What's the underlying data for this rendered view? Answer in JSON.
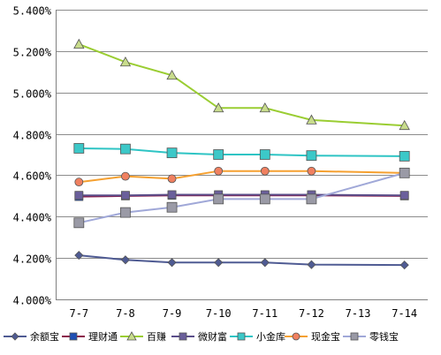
{
  "chart_data": {
    "type": "line",
    "categories": [
      "7-7",
      "7-8",
      "7-9",
      "7-10",
      "7-11",
      "7-12",
      "7-13",
      "7-14"
    ],
    "ylim": [
      4.0,
      5.4
    ],
    "yticks": [
      4.0,
      4.2,
      4.4,
      4.6,
      4.8,
      5.0,
      5.2,
      5.4
    ],
    "ytick_labels": [
      "4.000%",
      "4.200%",
      "4.400%",
      "4.600%",
      "4.800%",
      "5.000%",
      "5.200%",
      "5.400%"
    ],
    "grid": "horizontal",
    "legend_position": "bottom",
    "series": [
      {
        "name": "余额宝",
        "color": "#4f5b93",
        "marker": "diamond",
        "values": [
          4.213,
          4.191,
          4.178,
          4.178,
          4.178,
          4.168,
          null,
          4.166
        ]
      },
      {
        "name": "理财通",
        "color": "#8b1a4a",
        "marker_color": "#1f4fb4",
        "marker": "square",
        "values": [
          4.497,
          4.5,
          4.503,
          4.503,
          4.503,
          4.503,
          null,
          4.5
        ]
      },
      {
        "name": "百赚",
        "color": "#9acd32",
        "marker_color": "#c8dc8c",
        "marker": "triangle",
        "values": [
          5.233,
          5.147,
          5.083,
          4.925,
          4.925,
          4.867,
          null,
          4.84
        ]
      },
      {
        "name": "微财富",
        "color": "#5b4e8a",
        "marker_color": "#6a5f9b",
        "marker": "square",
        "values": [
          4.503,
          4.503,
          4.506,
          4.506,
          4.506,
          4.506,
          null,
          4.503
        ]
      },
      {
        "name": "小金库",
        "color": "#2ec4c4",
        "marker_color": "#3cc8c8",
        "marker": "square",
        "values": [
          4.73,
          4.727,
          4.708,
          4.7,
          4.7,
          4.695,
          null,
          4.692
        ]
      },
      {
        "name": "现金宝",
        "color": "#f5a030",
        "marker_color": "#f08060",
        "marker": "circle",
        "values": [
          4.567,
          4.595,
          4.583,
          4.62,
          4.62,
          4.62,
          null,
          4.611
        ]
      },
      {
        "name": "零钱宝",
        "color": "#a0a8d8",
        "marker_color": "#9a9aa6",
        "marker": "square",
        "values": [
          4.37,
          4.42,
          4.445,
          4.485,
          4.485,
          4.485,
          null,
          4.611
        ]
      }
    ]
  }
}
